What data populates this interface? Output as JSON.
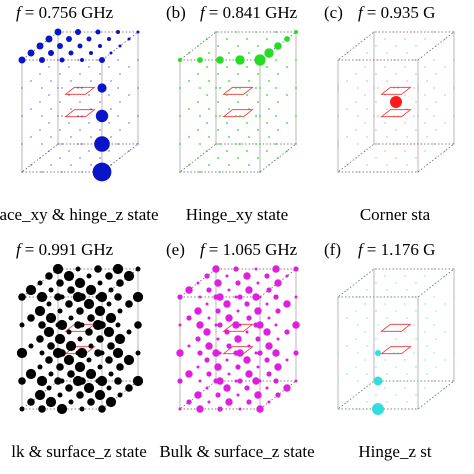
{
  "panels": [
    {
      "symbol": "f",
      "freq": "= 0.756 GHz",
      "caption": "ace_xy & hinge_z state"
    },
    {
      "label": "(b)",
      "symbol": "f",
      "freq": "= 0.841 GHz",
      "caption": "Hinge_xy state"
    },
    {
      "label": "(c)",
      "symbol": "f",
      "freq": "= 0.935 G",
      "caption": "Corner sta"
    },
    {
      "symbol": "f",
      "freq": "= 0.991 GHz",
      "caption": "lk & surface_z state"
    },
    {
      "label": "(e)",
      "symbol": "f",
      "freq": "= 1.065 GHz",
      "caption": "Bulk & surface_z state"
    },
    {
      "label": "(f)",
      "symbol": "f",
      "freq": "= 1.176 G",
      "caption": "Hinge_z st"
    }
  ]
}
